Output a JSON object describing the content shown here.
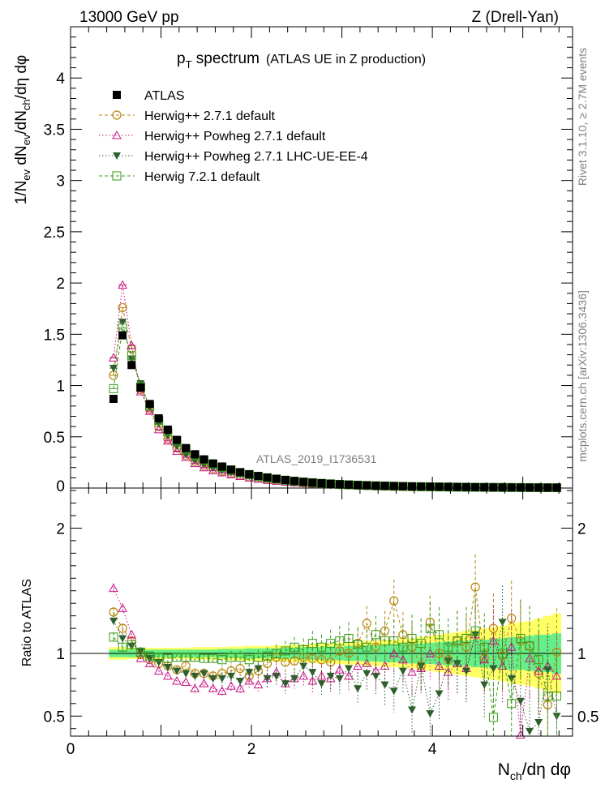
{
  "header": {
    "left": "13000 GeV pp",
    "right": "Z (Drell-Yan)"
  },
  "side_text": {
    "top": "Rivet 3.1.10, ≥ 2.7M events",
    "bottom": "mcplots.cern.ch [arXiv:1306.3436]"
  },
  "title": {
    "main": "p",
    "sub": "T",
    "main_after": " spectrum",
    "note": "(ATLAS UE in Z production)"
  },
  "analysis_id": "ATLAS_2019_I1736531",
  "chart_data": [
    {
      "type": "scatter",
      "panel": "main",
      "ylabel_parts": [
        "1/N",
        "ev",
        " dN",
        "ev",
        "/dN",
        "ch",
        "/dη dφ"
      ],
      "xlim": [
        0,
        5.55
      ],
      "ylim": [
        0,
        4.5
      ],
      "y_ticks": [
        {
          "v": 0.5,
          "t": "0.5"
        },
        {
          "v": 1,
          "t": "1"
        },
        {
          "v": 1.5,
          "t": "1.5"
        },
        {
          "v": 2,
          "t": "2"
        },
        {
          "v": 2.5,
          "t": "2.5"
        },
        {
          "v": 3,
          "t": "3"
        },
        {
          "v": 3.5,
          "t": "3.5"
        },
        {
          "v": 4,
          "t": "4"
        }
      ],
      "y_zero_label": "0",
      "legend_position": "top-left",
      "x": [
        0.475,
        0.575,
        0.675,
        0.775,
        0.875,
        0.975,
        1.075,
        1.175,
        1.275,
        1.375,
        1.475,
        1.575,
        1.675,
        1.775,
        1.875,
        1.975,
        2.075,
        2.175,
        2.275,
        2.375,
        2.475,
        2.575,
        2.675,
        2.775,
        2.875,
        2.975,
        3.075,
        3.175,
        3.275,
        3.375,
        3.475,
        3.575,
        3.675,
        3.775,
        3.875,
        3.975,
        4.075,
        4.175,
        4.275,
        4.375,
        4.475,
        4.575,
        4.675,
        4.775,
        4.875,
        4.975,
        5.075,
        5.175,
        5.275,
        5.375
      ],
      "series": [
        {
          "name": "ATLAS",
          "color": "#000000",
          "marker": "filled-square",
          "line": "none",
          "values": [
            0.87,
            1.49,
            1.2,
            0.98,
            0.82,
            0.68,
            0.57,
            0.47,
            0.39,
            0.33,
            0.28,
            0.24,
            0.21,
            0.18,
            0.155,
            0.135,
            0.118,
            0.103,
            0.09,
            0.079,
            0.069,
            0.06,
            0.053,
            0.047,
            0.042,
            0.037,
            0.033,
            0.029,
            0.026,
            0.023,
            0.021,
            0.019,
            0.017,
            0.015,
            0.014,
            0.013,
            0.012,
            0.011,
            0.01,
            0.009,
            0.008,
            0.007,
            0.0065,
            0.006,
            0.0055,
            0.005,
            0.0045,
            0.004,
            0.0037,
            0.0034
          ]
        },
        {
          "name": "Herwig++ 2.7.1 default",
          "color": "#b8860b",
          "marker": "open-circle",
          "line": "dashed",
          "values": [
            1.1,
            1.76,
            1.36,
            0.96,
            0.77,
            0.6,
            0.48,
            0.39,
            0.32,
            0.26,
            0.22,
            0.19,
            0.165,
            0.145,
            0.125,
            0.11,
            0.097,
            0.085,
            0.075,
            0.066,
            0.058,
            0.051,
            0.045,
            0.04,
            0.036,
            0.032,
            0.029,
            0.026,
            0.023,
            0.021,
            0.019,
            0.017,
            0.015,
            0.014,
            0.013,
            0.012,
            0.011,
            0.01,
            0.009,
            0.008,
            0.0075,
            0.007,
            0.0065,
            0.006,
            0.0055,
            0.005,
            0.0045,
            0.004,
            0.0037,
            0.0034
          ]
        },
        {
          "name": "Herwig++ Powheg 2.7.1 default",
          "color": "#c71585",
          "marker": "open-triangle",
          "line": "dotted",
          "values": [
            1.27,
            1.98,
            1.39,
            0.94,
            0.75,
            0.57,
            0.46,
            0.36,
            0.3,
            0.24,
            0.2,
            0.17,
            0.15,
            0.13,
            0.115,
            0.1,
            0.088,
            0.077,
            0.068,
            0.06,
            0.053,
            0.047,
            0.042,
            0.037,
            0.033,
            0.029,
            0.026,
            0.023,
            0.021,
            0.019,
            0.017,
            0.015,
            0.014,
            0.013,
            0.012,
            0.011,
            0.01,
            0.009,
            0.008,
            0.0075,
            0.007,
            0.0065,
            0.006,
            0.0055,
            0.005,
            0.0045,
            0.004,
            0.0037,
            0.0034,
            0.003
          ]
        },
        {
          "name": "Herwig++ Powheg 2.7.1 LHC-UE-EE-4",
          "color": "#2f5f2f",
          "marker": "filled-triangle-down",
          "line": "dotted",
          "values": [
            1.17,
            1.62,
            1.26,
            1.02,
            0.79,
            0.63,
            0.51,
            0.41,
            0.33,
            0.27,
            0.23,
            0.195,
            0.17,
            0.15,
            0.13,
            0.115,
            0.1,
            0.088,
            0.078,
            0.069,
            0.061,
            0.054,
            0.048,
            0.042,
            0.038,
            0.034,
            0.03,
            0.027,
            0.024,
            0.022,
            0.02,
            0.018,
            0.016,
            0.014,
            0.013,
            0.012,
            0.011,
            0.01,
            0.009,
            0.008,
            0.0075,
            0.007,
            0.0065,
            0.006,
            0.0055,
            0.005,
            0.0045,
            0.004,
            0.0037,
            0.0034
          ]
        },
        {
          "name": "Herwig 7.2.1 default",
          "color": "#3a9a1a",
          "marker": "open-square",
          "line": "dashed",
          "values": [
            0.97,
            1.56,
            1.29,
            0.99,
            0.8,
            0.66,
            0.55,
            0.46,
            0.38,
            0.32,
            0.27,
            0.23,
            0.2,
            0.175,
            0.15,
            0.13,
            0.114,
            0.1,
            0.088,
            0.077,
            0.067,
            0.059,
            0.052,
            0.046,
            0.041,
            0.036,
            0.032,
            0.028,
            0.025,
            0.022,
            0.02,
            0.018,
            0.016,
            0.014,
            0.013,
            0.012,
            0.011,
            0.01,
            0.009,
            0.008,
            0.0075,
            0.007,
            0.0065,
            0.006,
            0.0055,
            0.005,
            0.0045,
            0.004,
            0.0037,
            0.0034
          ]
        }
      ]
    },
    {
      "type": "scatter",
      "panel": "ratio",
      "ylabel": "Ratio to ATLAS",
      "xlabel_parts": [
        "N",
        "ch",
        "/dη dφ"
      ],
      "xlim": [
        0,
        5.55
      ],
      "ylim": [
        0.34,
        2.32
      ],
      "x_ticks": [
        {
          "v": 0,
          "t": "0"
        },
        {
          "v": 2,
          "t": "2"
        },
        {
          "v": 4,
          "t": "4"
        }
      ],
      "y_ticks": [
        {
          "v": 0.5,
          "t": "0.5"
        },
        {
          "v": 1,
          "t": "1"
        },
        {
          "v": 2,
          "t": "2"
        }
      ],
      "reference_line": 1,
      "x": [
        0.475,
        0.575,
        0.675,
        0.775,
        0.875,
        0.975,
        1.075,
        1.175,
        1.275,
        1.375,
        1.475,
        1.575,
        1.675,
        1.775,
        1.875,
        1.975,
        2.075,
        2.175,
        2.275,
        2.375,
        2.475,
        2.575,
        2.675,
        2.775,
        2.875,
        2.975,
        3.075,
        3.175,
        3.275,
        3.375,
        3.475,
        3.575,
        3.675,
        3.775,
        3.875,
        3.975,
        4.075,
        4.175,
        4.275,
        4.375,
        4.475,
        4.575,
        4.675,
        4.775,
        4.875,
        4.975,
        5.075,
        5.175,
        5.275,
        5.375
      ],
      "band_stat": [
        0.03,
        0.03,
        0.03,
        0.03,
        0.03,
        0.03,
        0.03,
        0.03,
        0.03,
        0.03,
        0.03,
        0.03,
        0.035,
        0.035,
        0.035,
        0.04,
        0.04,
        0.04,
        0.04,
        0.045,
        0.045,
        0.05,
        0.05,
        0.05,
        0.055,
        0.055,
        0.06,
        0.06,
        0.065,
        0.065,
        0.07,
        0.07,
        0.075,
        0.08,
        0.08,
        0.085,
        0.09,
        0.095,
        0.1,
        0.1,
        0.11,
        0.11,
        0.12,
        0.12,
        0.13,
        0.13,
        0.14,
        0.15,
        0.15,
        0.16
      ],
      "band_total": [
        0.05,
        0.05,
        0.045,
        0.045,
        0.045,
        0.045,
        0.045,
        0.045,
        0.045,
        0.05,
        0.05,
        0.05,
        0.05,
        0.055,
        0.055,
        0.06,
        0.06,
        0.06,
        0.065,
        0.065,
        0.07,
        0.07,
        0.075,
        0.08,
        0.08,
        0.085,
        0.09,
        0.09,
        0.1,
        0.1,
        0.11,
        0.11,
        0.12,
        0.12,
        0.13,
        0.14,
        0.15,
        0.16,
        0.17,
        0.18,
        0.19,
        0.2,
        0.21,
        0.22,
        0.24,
        0.25,
        0.26,
        0.28,
        0.3,
        0.32
      ],
      "series": [
        {
          "name": "Herwig++ 2.7.1 default",
          "color": "#b8860b",
          "marker": "open-circle",
          "line": "dashed",
          "values": [
            1.33,
            1.2,
            1.1,
            0.99,
            0.95,
            0.92,
            0.9,
            0.87,
            0.9,
            0.84,
            0.84,
            0.82,
            0.84,
            0.86,
            0.88,
            0.82,
            0.86,
            0.92,
            0.97,
            0.93,
            0.94,
            0.97,
            0.96,
            0.95,
            0.93,
            1.02,
            1.0,
            1.08,
            1.24,
            1.05,
            1.18,
            1.42,
            1.15,
            1.05,
            0.9,
            1.25,
            1.0,
            0.95,
            1.1,
            1.05,
            1.53,
            0.96,
            1.2,
            0.98,
            1.28,
            1.1,
            1.06,
            0.84,
            0.59,
            1.01
          ],
          "err": [
            0.04,
            0.04,
            0.03,
            0.03,
            0.03,
            0.03,
            0.03,
            0.03,
            0.03,
            0.04,
            0.04,
            0.04,
            0.05,
            0.05,
            0.05,
            0.06,
            0.06,
            0.07,
            0.07,
            0.08,
            0.08,
            0.09,
            0.1,
            0.1,
            0.11,
            0.12,
            0.13,
            0.13,
            0.14,
            0.15,
            0.16,
            0.17,
            0.18,
            0.19,
            0.2,
            0.21,
            0.22,
            0.23,
            0.24,
            0.25,
            0.26,
            0.27,
            0.28,
            0.29,
            0.3,
            0.31,
            0.32,
            0.33,
            0.34,
            0.35
          ]
        },
        {
          "name": "Herwig++ Powheg 2.7.1 default",
          "color": "#c71585",
          "marker": "open-triangle",
          "line": "dotted",
          "values": [
            1.52,
            1.36,
            1.15,
            0.96,
            0.92,
            0.86,
            0.82,
            0.78,
            0.77,
            0.72,
            0.76,
            0.72,
            0.7,
            0.74,
            0.72,
            0.78,
            0.75,
            0.8,
            0.85,
            0.76,
            0.8,
            0.82,
            0.78,
            0.82,
            0.8,
            0.87,
            0.82,
            0.9,
            0.92,
            0.86,
            0.9,
            1.0,
            0.95,
            0.85,
            0.88,
            1.0,
            0.9,
            0.85,
            0.92,
            0.88,
            1.15,
            0.95,
            1.1,
            0.9,
            1.05,
            0.35,
            0.96,
            0.86,
            0.9,
            0.82
          ],
          "err": [
            0.04,
            0.04,
            0.03,
            0.03,
            0.03,
            0.03,
            0.03,
            0.03,
            0.03,
            0.04,
            0.04,
            0.04,
            0.05,
            0.05,
            0.05,
            0.06,
            0.06,
            0.07,
            0.07,
            0.08,
            0.08,
            0.09,
            0.1,
            0.1,
            0.11,
            0.12,
            0.13,
            0.13,
            0.14,
            0.15,
            0.16,
            0.17,
            0.18,
            0.19,
            0.2,
            0.21,
            0.22,
            0.23,
            0.24,
            0.25,
            0.26,
            0.27,
            0.28,
            0.29,
            0.3,
            0.31,
            0.32,
            0.33,
            0.34,
            0.35
          ]
        },
        {
          "name": "Herwig++ Powheg 2.7.1 LHC-UE-EE-4",
          "color": "#2f5f2f",
          "marker": "filled-triangle-down",
          "line": "dotted",
          "values": [
            1.26,
            1.12,
            1.06,
            1.02,
            0.96,
            0.93,
            0.89,
            0.86,
            0.84,
            0.82,
            0.84,
            0.8,
            0.8,
            0.82,
            0.78,
            0.85,
            0.88,
            0.8,
            0.82,
            0.76,
            0.8,
            0.9,
            0.85,
            0.76,
            0.82,
            0.8,
            0.88,
            0.72,
            0.84,
            0.82,
            0.75,
            0.7,
            0.86,
            0.55,
            0.9,
            0.52,
            0.68,
            0.94,
            0.92,
            0.86,
            1.15,
            0.75,
            0.88,
            1.25,
            0.8,
            0.62,
            0.38,
            0.45,
            0.87,
            0.5
          ],
          "err": [
            0.04,
            0.04,
            0.03,
            0.03,
            0.03,
            0.03,
            0.03,
            0.03,
            0.03,
            0.04,
            0.04,
            0.04,
            0.05,
            0.05,
            0.05,
            0.06,
            0.06,
            0.07,
            0.07,
            0.08,
            0.08,
            0.09,
            0.1,
            0.1,
            0.11,
            0.12,
            0.13,
            0.13,
            0.14,
            0.15,
            0.16,
            0.17,
            0.18,
            0.19,
            0.2,
            0.21,
            0.22,
            0.23,
            0.24,
            0.25,
            0.26,
            0.27,
            0.28,
            0.29,
            0.3,
            0.31,
            0.32,
            0.33,
            0.34,
            0.35
          ]
        },
        {
          "name": "Herwig 7.2.1 default",
          "color": "#3a9a1a",
          "marker": "open-square",
          "line": "dashed",
          "values": [
            1.13,
            1.05,
            1.07,
            1.01,
            0.98,
            0.97,
            0.96,
            0.97,
            0.97,
            0.97,
            0.96,
            0.96,
            0.95,
            0.97,
            0.97,
            0.95,
            0.97,
            0.98,
            1.0,
            1.02,
            1.05,
            1.03,
            1.08,
            1.05,
            1.08,
            1.1,
            1.12,
            1.07,
            1.05,
            1.15,
            1.1,
            1.1,
            1.05,
            1.12,
            1.08,
            1.2,
            1.15,
            1.05,
            1.1,
            1.12,
            1.18,
            1.05,
            0.49,
            1.0,
            0.6,
            1.12,
            1.06,
            0.95,
            0.66,
            0.66
          ],
          "err": [
            0.04,
            0.04,
            0.03,
            0.03,
            0.03,
            0.03,
            0.03,
            0.03,
            0.03,
            0.04,
            0.04,
            0.04,
            0.05,
            0.05,
            0.05,
            0.06,
            0.06,
            0.07,
            0.07,
            0.08,
            0.08,
            0.09,
            0.1,
            0.1,
            0.11,
            0.12,
            0.13,
            0.13,
            0.14,
            0.15,
            0.16,
            0.17,
            0.18,
            0.19,
            0.2,
            0.21,
            0.22,
            0.23,
            0.24,
            0.25,
            0.26,
            0.27,
            0.28,
            0.29,
            0.3,
            0.31,
            0.32,
            0.33,
            0.34,
            0.35
          ]
        }
      ]
    }
  ]
}
